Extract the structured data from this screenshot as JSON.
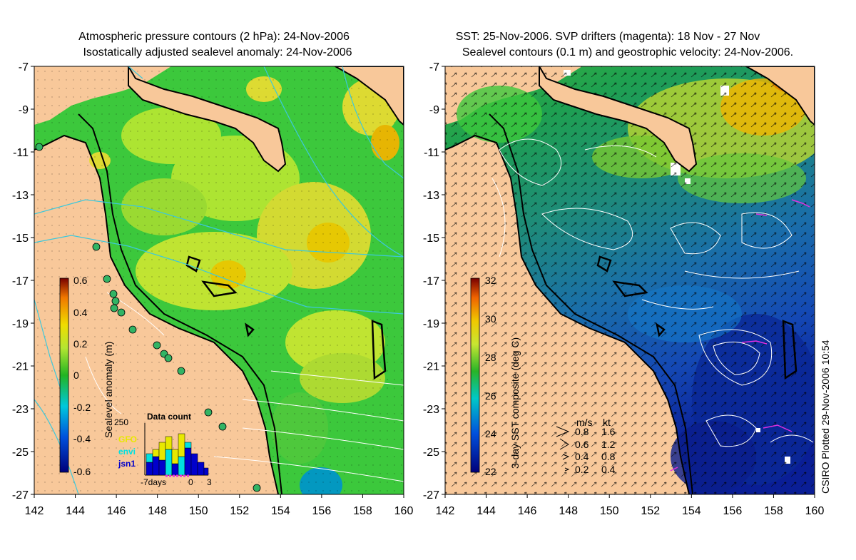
{
  "left_panel": {
    "title_line1": "Atmospheric pressure contours (2 hPa): 24-Nov-2006",
    "title_line2": "Isostatically adjusted sealevel anomaly: 24-Nov-2006",
    "colorbar": {
      "label": "Sealevel anomaly (m)",
      "ticks": [
        "0.6",
        "0.4",
        "0.2",
        "0",
        "-0.2",
        "-0.4",
        "-0.6"
      ]
    },
    "data_count": {
      "title": "Data count",
      "ytick": "250",
      "legend": [
        {
          "label": "GFO",
          "color": "#e8e800"
        },
        {
          "label": "envi",
          "color": "#00e0e0"
        },
        {
          "label": "jsn1",
          "color": "#0000cc"
        }
      ],
      "xlabel_left": "-7days",
      "xtick_mid": "0",
      "xtick_right": "3"
    }
  },
  "right_panel": {
    "title_line1": "SST: 25-Nov-2006. SVP drifters (magenta): 18 Nov - 27 Nov",
    "title_line2": "Sealevel contours (0.1 m) and geostrophic velocity: 24-Nov-2006.",
    "colorbar": {
      "label": "3-day SST composite (deg C)",
      "ticks": [
        "32",
        "30",
        "28",
        "26",
        "24",
        "22"
      ]
    },
    "velocity_key": {
      "header_ms": "m/s",
      "header_kt": "kt",
      "rows": [
        {
          "ms": "0.8",
          "kt": "1.6"
        },
        {
          "ms": "0.6",
          "kt": "1.2"
        },
        {
          "ms": "0.4",
          "kt": "0.8"
        },
        {
          "ms": "0.2",
          "kt": "0.4"
        }
      ]
    }
  },
  "axes": {
    "y_ticks": [
      "-7",
      "-9",
      "-11",
      "-13",
      "-15",
      "-17",
      "-19",
      "-21",
      "-23",
      "-25",
      "-27"
    ],
    "x_ticks": [
      "142",
      "144",
      "146",
      "148",
      "150",
      "152",
      "154",
      "156",
      "158",
      "160"
    ]
  },
  "credit": "CSIRO Plotted 29-Nov-2006 10:54",
  "colors": {
    "land": "#f8c89a",
    "sla_green": "#3cc83c",
    "sla_yellow": "#e6e632",
    "sst_teal": "#1e9682",
    "sst_blue": "#1455b4",
    "contour_cyan": "#3cc8dc",
    "drifter_magenta": "#e030e0"
  }
}
